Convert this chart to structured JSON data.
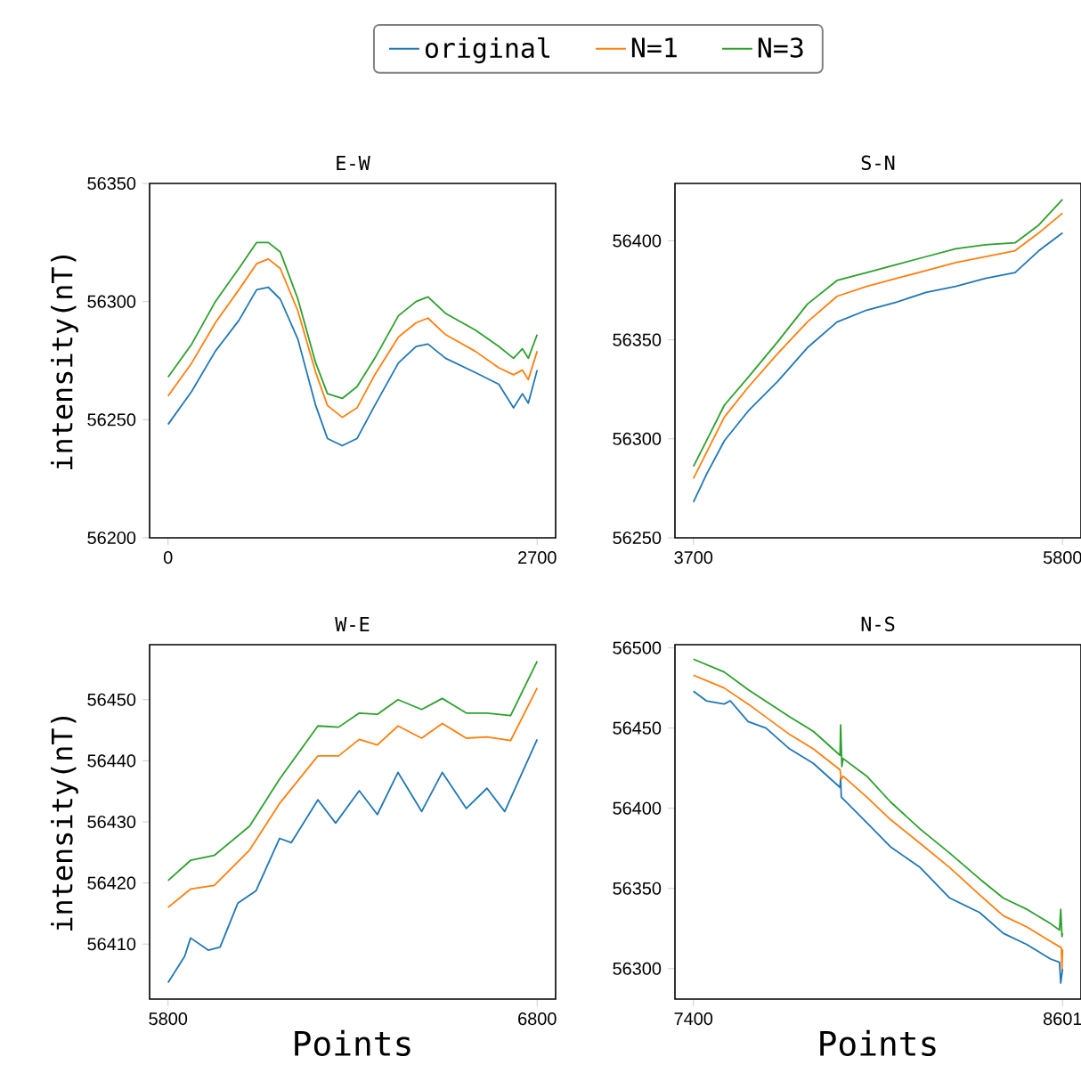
{
  "chart_data": [
    {
      "type": "line",
      "title": "E-W",
      "ylabel": "intensity(nT)",
      "legend": "top",
      "xlim": [
        -135,
        2835
      ],
      "ylim": [
        56200,
        56350
      ],
      "xticks": [
        0,
        2700
      ],
      "yticks": [
        56200,
        56250,
        56300,
        56350
      ],
      "x": [
        0,
        173,
        346,
        518,
        648,
        734,
        821,
        950,
        1080,
        1166,
        1274,
        1382,
        1512,
        1685,
        1814,
        1901,
        2030,
        2246,
        2419,
        2527,
        2592,
        2635,
        2700
      ],
      "series": [
        {
          "name": "original",
          "color": "#1f77b4",
          "values": [
            56248,
            56262,
            56279,
            56292,
            56305,
            56306,
            56301,
            56284,
            56256,
            56242,
            56239,
            56242,
            56256,
            56274,
            56281,
            56282,
            56276,
            56270,
            56265,
            56255,
            56261,
            56257,
            56271
          ]
        },
        {
          "name": "N=1",
          "color": "#ff7f0e",
          "values": [
            56260,
            56274,
            56291,
            56305,
            56316,
            56318,
            56314,
            56296,
            56270,
            56256,
            56251,
            56255,
            56269,
            56285,
            56291,
            56293,
            56286,
            56279,
            56272,
            56269,
            56271,
            56267,
            56279
          ]
        },
        {
          "name": "N=3",
          "color": "#2ca02c",
          "values": [
            56268,
            56282,
            56300,
            56314,
            56325,
            56325,
            56321,
            56301,
            56274,
            56261,
            56259,
            56264,
            56276,
            56294,
            56300,
            56302,
            56295,
            56288,
            56281,
            56276,
            56280,
            56276,
            56286
          ]
        }
      ]
    },
    {
      "type": "line",
      "title": "S-N",
      "xlim": [
        3595,
        5905
      ],
      "ylim": [
        56250,
        56429
      ],
      "xticks": [
        3700,
        5800
      ],
      "yticks": [
        56250,
        56300,
        56350,
        56400
      ],
      "x": [
        3700,
        3774,
        3876,
        4011,
        4179,
        4348,
        4517,
        4686,
        4855,
        5023,
        5192,
        5361,
        5530,
        5665,
        5800
      ],
      "series": [
        {
          "color": "#1f77b4",
          "values": [
            56268,
            56282,
            56299,
            56314,
            56329,
            56346,
            56359,
            56365,
            56369,
            56374,
            56377,
            56381,
            56384,
            56395,
            56404
          ]
        },
        {
          "color": "#ff7f0e",
          "values": [
            56280,
            56293,
            56311,
            56326,
            56343,
            56359,
            56372,
            56377,
            56381,
            56385,
            56389,
            56392,
            56395,
            56404,
            56414
          ]
        },
        {
          "color": "#2ca02c",
          "values": [
            56286,
            56299,
            56317,
            56331,
            56349,
            56368,
            56380,
            56384,
            56388,
            56392,
            56396,
            56398,
            56399,
            56408,
            56421
          ]
        }
      ]
    },
    {
      "type": "line",
      "title": "W-E",
      "xlabel": "Points",
      "ylabel": "intensity(nT)",
      "xlim": [
        5750,
        6850
      ],
      "ylim": [
        56401,
        56459
      ],
      "xticks": [
        5800,
        6800
      ],
      "yticks": [
        56410,
        56420,
        56430,
        56440,
        56450
      ],
      "series": [
        {
          "color": "#1f77b4",
          "x": [
            5800,
            5845,
            5861,
            5909,
            5941,
            5989,
            6038,
            6102,
            6134,
            6206,
            6254,
            6318,
            6367,
            6423,
            6487,
            6543,
            6608,
            6664,
            6712,
            6800
          ],
          "values": [
            56403.7,
            56408,
            56411,
            56409,
            56409.5,
            56416.7,
            56418.7,
            56427.3,
            56426.6,
            56433.6,
            56429.8,
            56435.1,
            56431.2,
            56438.1,
            56431.7,
            56438.1,
            56432.2,
            56435.5,
            56431.7,
            56443.5
          ]
        },
        {
          "color": "#ff7f0e",
          "x": [
            5800,
            5861,
            5925,
            6021,
            6102,
            6206,
            6262,
            6318,
            6367,
            6423,
            6487,
            6543,
            6608,
            6664,
            6728,
            6800
          ],
          "values": [
            56416,
            56419,
            56419.6,
            56425.4,
            56433,
            56440.8,
            56440.8,
            56443.5,
            56442.6,
            56445.7,
            56443.7,
            56446.1,
            56443.7,
            56443.9,
            56443.3,
            56451.9
          ]
        },
        {
          "color": "#2ca02c",
          "x": [
            5800,
            5861,
            5925,
            6021,
            6102,
            6206,
            6262,
            6318,
            6367,
            6423,
            6487,
            6543,
            6608,
            6664,
            6728,
            6800
          ],
          "values": [
            56420.4,
            56423.7,
            56424.5,
            56429.3,
            56437,
            56445.7,
            56445.5,
            56447.8,
            56447.6,
            56450,
            56448.4,
            56450.2,
            56447.8,
            56447.8,
            56447.4,
            56456.3
          ]
        }
      ]
    },
    {
      "type": "line",
      "title": "N-S",
      "xlabel": "Points",
      "xlim": [
        7340,
        8661
      ],
      "ylim": [
        56281,
        56502
      ],
      "xticks": [
        7400,
        8601
      ],
      "yticks": [
        56300,
        56350,
        56400,
        56450,
        56500
      ],
      "series": [
        {
          "color": "#1f77b4",
          "x": [
            7400,
            7442,
            7500,
            7520,
            7578,
            7636,
            7713,
            7790,
            7877,
            7879,
            7881,
            7964,
            8041,
            8138,
            8234,
            8331,
            8408,
            8485,
            8562,
            8591,
            8595,
            8601
          ],
          "values": [
            56473,
            56467,
            56465,
            56467,
            56454,
            56450,
            56437,
            56428,
            56413,
            56419,
            56407,
            56391,
            56376,
            56363,
            56344,
            56335,
            56322,
            56315,
            56306,
            56304,
            56291,
            56300
          ]
        },
        {
          "color": "#ff7f0e",
          "x": [
            7400,
            7500,
            7578,
            7713,
            7790,
            7877,
            7881,
            7887,
            7964,
            8041,
            8138,
            8234,
            8331,
            8408,
            8485,
            8562,
            8597,
            8599,
            8601
          ],
          "values": [
            56483,
            56475,
            56465,
            56446,
            56437,
            56424,
            56418,
            56420,
            56407,
            56393,
            56378,
            56363,
            56346,
            56333,
            56326,
            56317,
            56313,
            56300,
            56312
          ]
        },
        {
          "color": "#2ca02c",
          "x": [
            7400,
            7500,
            7578,
            7713,
            7790,
            7877,
            7879,
            7883,
            7887,
            7964,
            8041,
            8138,
            8234,
            8331,
            8408,
            8485,
            8562,
            8591,
            8595,
            8599,
            8601
          ],
          "values": [
            56493,
            56485,
            56474,
            56457,
            56448,
            56433,
            56452,
            56426,
            56431,
            56420,
            56404,
            56387,
            56372,
            56356,
            56344,
            56337,
            56328,
            56324,
            56337,
            56320,
            56322
          ]
        }
      ]
    }
  ]
}
